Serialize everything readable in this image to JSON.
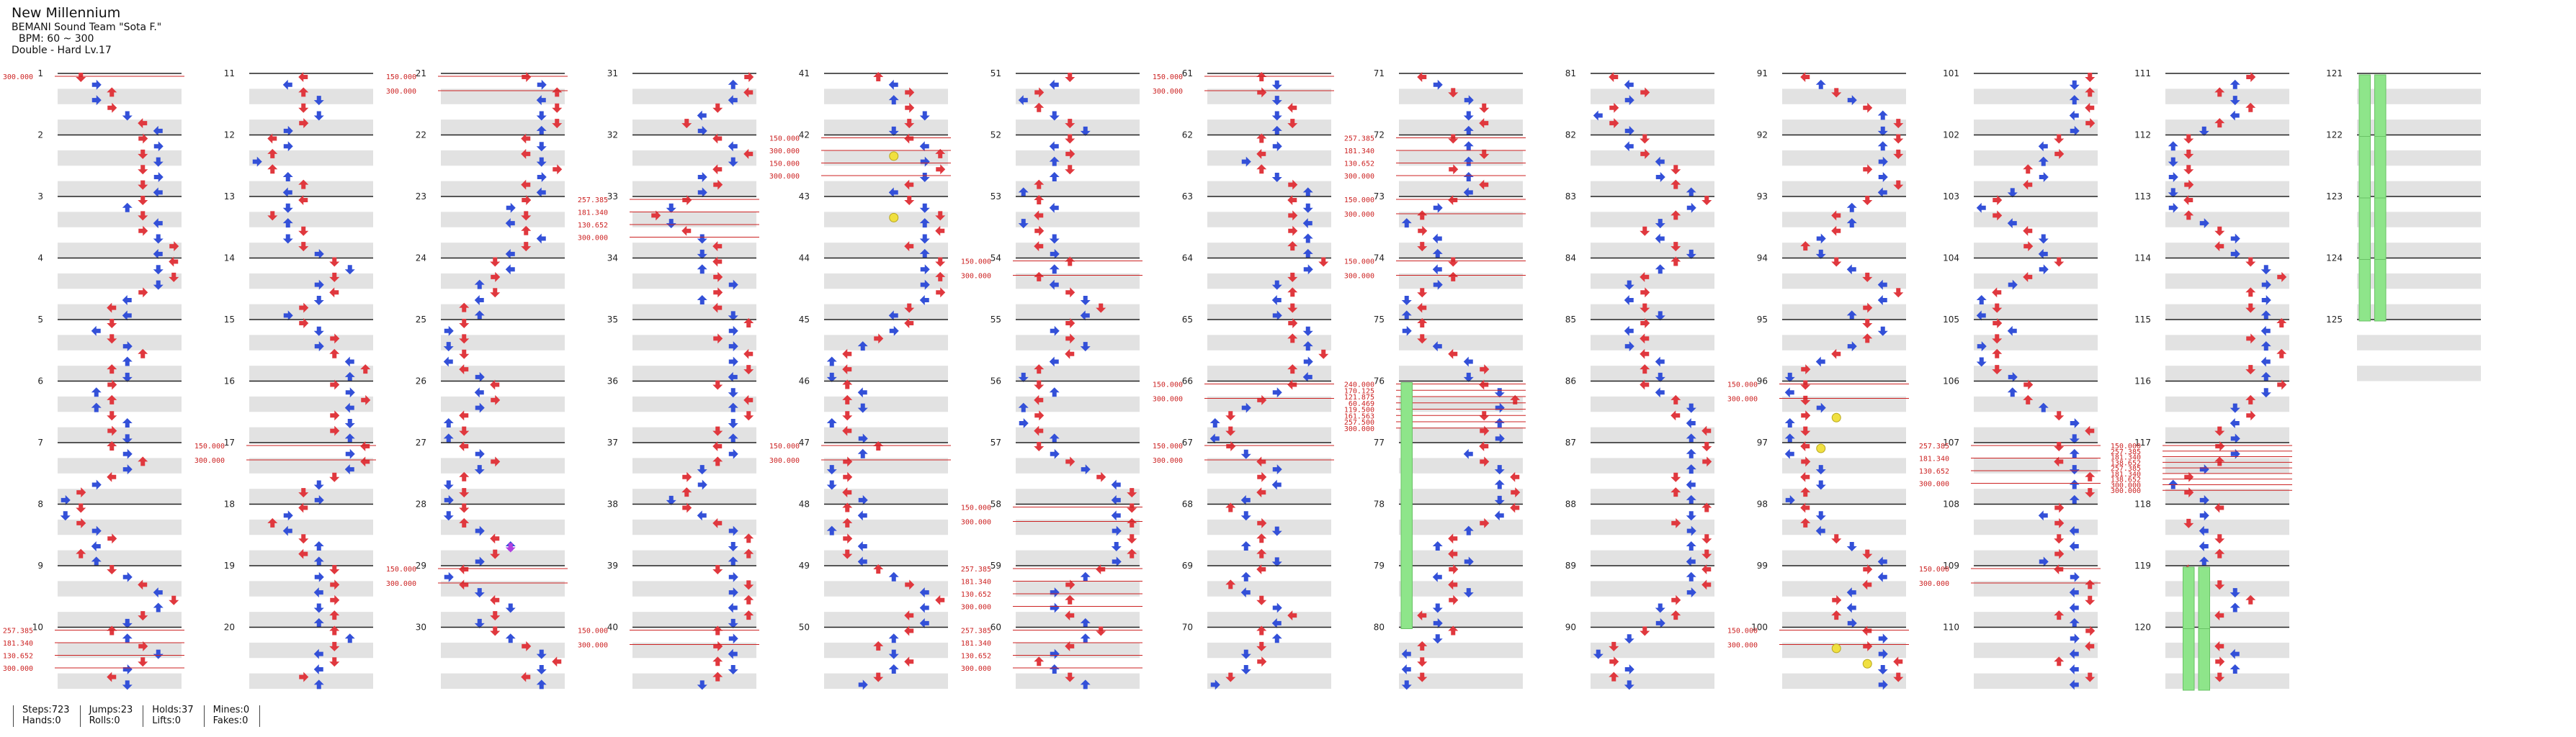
{
  "song": {
    "title": "New Millennium",
    "artist": "BEMANI Sound Team \"Sota F.\"",
    "bpm_text": "BPM: 60 ~ 300",
    "difficulty_text": "Double - Hard  Lv.17"
  },
  "stats": {
    "steps": {
      "label": "Steps:",
      "value": "723"
    },
    "hands": {
      "label": "Hands:",
      "value": "0"
    },
    "jumps": {
      "label": "Jumps:",
      "value": "23"
    },
    "rolls": {
      "label": "Rolls:",
      "value": "0"
    },
    "holds": {
      "label": "Holds:",
      "value": "37"
    },
    "lifts": {
      "label": "Lifts:",
      "value": "0"
    },
    "mines": {
      "label": "Mines:",
      "value": "0"
    },
    "fakes": {
      "label": "Fakes:",
      "value": "0"
    }
  },
  "colors": {
    "quarter_note": "#e0383e",
    "eighth_note": "#3350d8",
    "hold_body": "#8ee58a",
    "mine": "#f0e040",
    "sixteenth_note": "#b040e0",
    "bpm_label": "#cc2222",
    "beat_shade": "#e2e2e2",
    "measure_line": "#222222"
  },
  "measure_count": 125,
  "bpm_changes": [
    {
      "measure": 1,
      "labels": [
        "300.000"
      ]
    },
    {
      "measure": 10,
      "labels": [
        "257.385",
        "181.340",
        "130.652",
        "300.000"
      ]
    },
    {
      "measure": 17,
      "labels": [
        "150.000",
        "300.000"
      ]
    },
    {
      "measure": 21,
      "labels": [
        "150.000",
        "300.000"
      ]
    },
    {
      "measure": 29,
      "labels": [
        "150.000",
        "300.000"
      ]
    },
    {
      "measure": 33,
      "labels": [
        "257.385",
        "181.340",
        "130.652",
        "300.000"
      ]
    },
    {
      "measure": 40,
      "labels": [
        "150.000",
        "300.000"
      ]
    },
    {
      "measure": 42,
      "labels": [
        "150.000",
        "300.000",
        "150.000",
        "300.000"
      ]
    },
    {
      "measure": 47,
      "labels": [
        "150.000",
        "300.000"
      ]
    },
    {
      "measure": 54,
      "labels": [
        "150.000",
        "300.000"
      ]
    },
    {
      "measure": 58,
      "labels": [
        "150.000",
        "300.000"
      ]
    },
    {
      "measure": 59,
      "labels": [
        "257.385",
        "181.340",
        "130.652",
        "300.000"
      ]
    },
    {
      "measure": 60,
      "labels": [
        "257.385",
        "181.340",
        "130.652",
        "300.000"
      ]
    },
    {
      "measure": 61,
      "labels": [
        "150.000",
        "300.000"
      ]
    },
    {
      "measure": 66,
      "labels": [
        "150.000",
        "300.000"
      ]
    },
    {
      "measure": 67,
      "labels": [
        "150.000",
        "300.000"
      ]
    },
    {
      "measure": 72,
      "labels": [
        "257.385",
        "181.340",
        "130.652",
        "300.000"
      ]
    },
    {
      "measure": 73,
      "labels": [
        "150.000",
        "300.000"
      ]
    },
    {
      "measure": 74,
      "labels": [
        "150.000",
        "300.000"
      ]
    },
    {
      "measure": 76,
      "labels": [
        "240.000",
        "170.125",
        "121.875",
        "60.469",
        "119.500",
        "161.563",
        "257.500",
        "300.000"
      ]
    },
    {
      "measure": 96,
      "labels": [
        "150.000",
        "300.000"
      ]
    },
    {
      "measure": 100,
      "labels": [
        "150.000",
        "300.000"
      ]
    },
    {
      "measure": 107,
      "labels": [
        "257.385",
        "181.340",
        "130.652",
        "300.000"
      ]
    },
    {
      "measure": 109,
      "labels": [
        "150.000",
        "300.000"
      ]
    },
    {
      "measure": 117,
      "labels": [
        "150.000",
        "257.385",
        "181.340",
        "138.652",
        "257.385",
        "181.340",
        "138.652",
        "300.000",
        "300.000"
      ]
    }
  ]
}
